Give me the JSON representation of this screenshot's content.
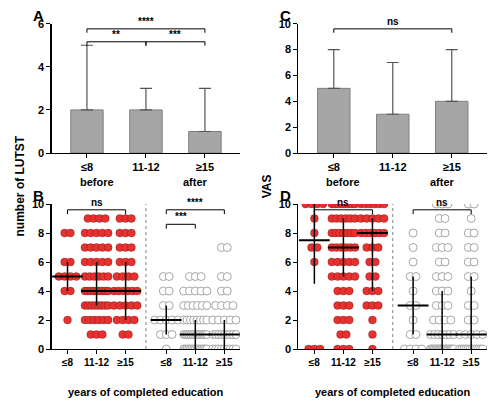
{
  "chart_data": [
    {
      "type": "bar",
      "title": "A",
      "y_label": "number of LUTST",
      "categories": [
        "≤8",
        "11-12",
        "≥15"
      ],
      "values": [
        2,
        2,
        1
      ],
      "error_plus": [
        3,
        1,
        2
      ],
      "color": "#a6a6a6",
      "ylim": [
        0,
        6
      ],
      "yticks": [
        0,
        2,
        4,
        6
      ],
      "grid": false,
      "comparisons": [
        {
          "from": "≤8",
          "to": "11-12",
          "label": "**"
        },
        {
          "from": "11-12",
          "to": "≥15",
          "label": "***"
        },
        {
          "from": "≤8",
          "to": "≥15",
          "label": "****"
        }
      ]
    },
    {
      "type": "dot",
      "title": "B",
      "x_label": "years of completed education",
      "categories": [
        "≤8",
        "11-12",
        "≥15"
      ],
      "ylim": [
        0,
        10
      ],
      "yticks": [
        0,
        2,
        4,
        6,
        8,
        10
      ],
      "grid": false,
      "series": [
        {
          "name": "before",
          "color": "#e8312f",
          "marker": "filled",
          "values": [
            [
              8,
              8,
              6,
              6,
              5,
              5,
              5,
              5,
              4,
              4,
              2
            ],
            [
              9,
              9,
              9,
              9,
              8,
              8,
              8,
              8,
              8,
              7,
              7,
              7,
              7,
              7,
              6,
              6,
              6,
              6,
              6,
              5,
              5,
              5,
              5,
              5,
              5,
              4,
              4,
              4,
              4,
              4,
              4,
              4,
              4,
              4,
              3,
              3,
              3,
              3,
              3,
              3,
              3,
              3,
              2,
              2,
              2,
              2,
              2,
              2,
              1,
              1,
              1
            ],
            [
              9,
              9,
              9,
              8,
              8,
              8,
              7,
              7,
              7,
              6,
              6,
              6,
              5,
              5,
              5,
              5,
              4,
              4,
              4,
              4,
              4,
              4,
              3,
              3,
              3,
              3,
              3,
              2,
              2,
              2,
              2,
              1,
              1
            ]
          ],
          "median": [
            5,
            4,
            4
          ],
          "iqr_low": [
            4,
            3,
            2
          ],
          "iqr_high": [
            6,
            6,
            6
          ],
          "comparisons": [
            {
              "from": "≤8",
              "to": "≥15",
              "label": "ns"
            }
          ]
        },
        {
          "name": "after",
          "color": "#a6a6a6",
          "marker": "open",
          "values": [
            [
              5,
              5,
              4,
              4,
              3,
              3,
              2,
              2,
              2,
              2,
              2,
              1,
              1,
              1,
              0
            ],
            [
              5,
              5,
              5,
              4,
              4,
              4,
              4,
              4,
              3,
              3,
              3,
              3,
              3,
              3,
              2,
              2,
              2,
              2,
              2,
              2,
              2,
              2,
              1,
              1,
              1,
              1,
              1,
              1,
              1,
              1,
              1,
              1,
              1,
              1,
              1,
              1,
              0,
              0,
              0,
              0,
              0,
              0,
              0,
              0,
              0,
              0,
              0,
              0,
              0,
              0,
              0
            ],
            [
              7,
              7,
              5,
              5,
              4,
              4,
              3,
              3,
              3,
              3,
              2,
              2,
              2,
              2,
              2,
              1,
              1,
              1,
              1,
              1,
              1,
              1,
              1,
              1,
              0,
              0,
              0,
              0,
              0,
              0,
              0,
              0,
              0
            ]
          ],
          "median": [
            2,
            1,
            1
          ],
          "iqr_low": [
            1,
            0,
            0
          ],
          "iqr_high": [
            3,
            2,
            2
          ],
          "comparisons": [
            {
              "from": "≤8",
              "to": "11-12",
              "label": "***"
            },
            {
              "from": "≤8",
              "to": "≥15",
              "label": "****"
            }
          ]
        }
      ]
    },
    {
      "type": "bar",
      "title": "C",
      "y_label": "VAS",
      "categories": [
        "≤8",
        "11-12",
        "≥15"
      ],
      "values": [
        5,
        3,
        4
      ],
      "error_plus": [
        3,
        4,
        4
      ],
      "color": "#a6a6a6",
      "ylim": [
        0,
        10
      ],
      "yticks": [
        0,
        2,
        4,
        6,
        8,
        10
      ],
      "grid": false,
      "comparisons": [
        {
          "from": "≤8",
          "to": "≥15",
          "label": "ns"
        }
      ]
    },
    {
      "type": "dot",
      "title": "D",
      "x_label": "years of completed education",
      "categories": [
        "≤8",
        "11-12",
        "≥15"
      ],
      "ylim": [
        0,
        10
      ],
      "yticks": [
        0,
        2,
        4,
        6,
        8,
        10
      ],
      "grid": false,
      "series": [
        {
          "name": "before",
          "color": "#e8312f",
          "marker": "filled",
          "values": [
            [
              10,
              10,
              10,
              10,
              9,
              8,
              7,
              7,
              6,
              0,
              0,
              0
            ],
            [
              10,
              10,
              10,
              10,
              10,
              10,
              10,
              10,
              9,
              9,
              9,
              9,
              9,
              9,
              8,
              8,
              8,
              8,
              8,
              8,
              8,
              7,
              7,
              7,
              7,
              7,
              7,
              6,
              6,
              6,
              6,
              6,
              5,
              5,
              5,
              5,
              5,
              4,
              4,
              4,
              3,
              3,
              3,
              2,
              2,
              2,
              1,
              1,
              0,
              0,
              0
            ],
            [
              10,
              10,
              10,
              10,
              10,
              10,
              9,
              9,
              9,
              9,
              9,
              8,
              8,
              8,
              8,
              8,
              8,
              7,
              7,
              7,
              6,
              6,
              5,
              5,
              4,
              4,
              4,
              3,
              3,
              3,
              2,
              1,
              0
            ]
          ],
          "median": [
            7.5,
            7,
            8
          ],
          "iqr_low": [
            4.5,
            5,
            4
          ],
          "iqr_high": [
            10,
            9,
            9
          ],
          "comparisons": [
            {
              "from": "≤8",
              "to": "≥15",
              "label": "ns"
            }
          ]
        },
        {
          "name": "after",
          "color": "#a6a6a6",
          "marker": "open",
          "values": [
            [
              8,
              7,
              6,
              5,
              5,
              4,
              3,
              3,
              2,
              1,
              1,
              0,
              0,
              0,
              0
            ],
            [
              10,
              10,
              10,
              9,
              9,
              8,
              8,
              7,
              7,
              7,
              6,
              6,
              5,
              5,
              5,
              4,
              4,
              4,
              3,
              3,
              3,
              2,
              2,
              2,
              2,
              1,
              1,
              1,
              1,
              1,
              1,
              1,
              0,
              0,
              0,
              0,
              0,
              0,
              0,
              0,
              0,
              0,
              0,
              0,
              0,
              0,
              0,
              0,
              0,
              0,
              0
            ],
            [
              10,
              10,
              9,
              8,
              8,
              7,
              7,
              6,
              6,
              5,
              5,
              4,
              3,
              3,
              2,
              2,
              1,
              1,
              1,
              1,
              1,
              0,
              0,
              0,
              0,
              0,
              0,
              0,
              0,
              0,
              0,
              0,
              0
            ]
          ],
          "median": [
            3,
            1,
            1
          ],
          "iqr_low": [
            1,
            0,
            0
          ],
          "iqr_high": [
            5,
            4,
            5
          ],
          "comparisons": [
            {
              "from": "≤8",
              "to": "≥15",
              "label": "ns"
            }
          ]
        }
      ]
    }
  ]
}
